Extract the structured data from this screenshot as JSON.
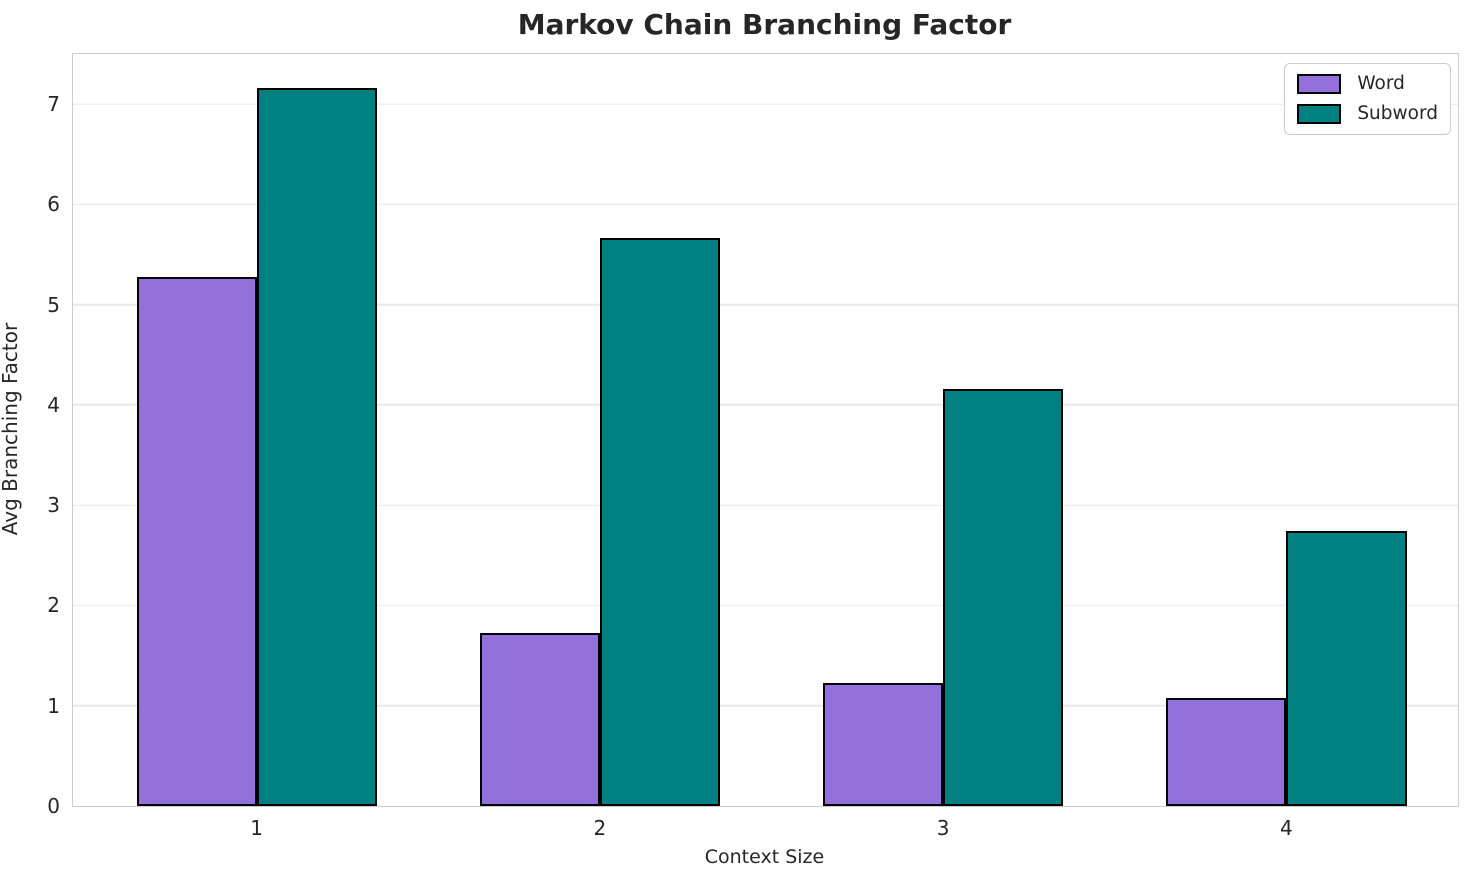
{
  "chart_data": {
    "type": "bar",
    "title": "Markov Chain Branching Factor",
    "xlabel": "Context Size",
    "ylabel": "Avg Branching Factor",
    "categories": [
      "1",
      "2",
      "3",
      "4"
    ],
    "series": [
      {
        "name": "Word",
        "color": "#9370DB",
        "values": [
          5.28,
          1.73,
          1.23,
          1.08
        ]
      },
      {
        "name": "Subword",
        "color": "#008080",
        "values": [
          7.16,
          5.67,
          4.16,
          2.74
        ]
      }
    ],
    "bar_edge_color": "#000000",
    "bar_width": 0.35,
    "ylim": [
      0,
      7.5
    ],
    "yticks": [
      0,
      1,
      2,
      3,
      4,
      5,
      6,
      7
    ],
    "xlim": [
      0.465,
      4.5
    ],
    "grid": true,
    "grid_color": "#e8e8e8",
    "axis_color": "#cccccc",
    "text_color": "#262626",
    "legend": {
      "position": "upper right",
      "entries": [
        "Word",
        "Subword"
      ]
    }
  }
}
